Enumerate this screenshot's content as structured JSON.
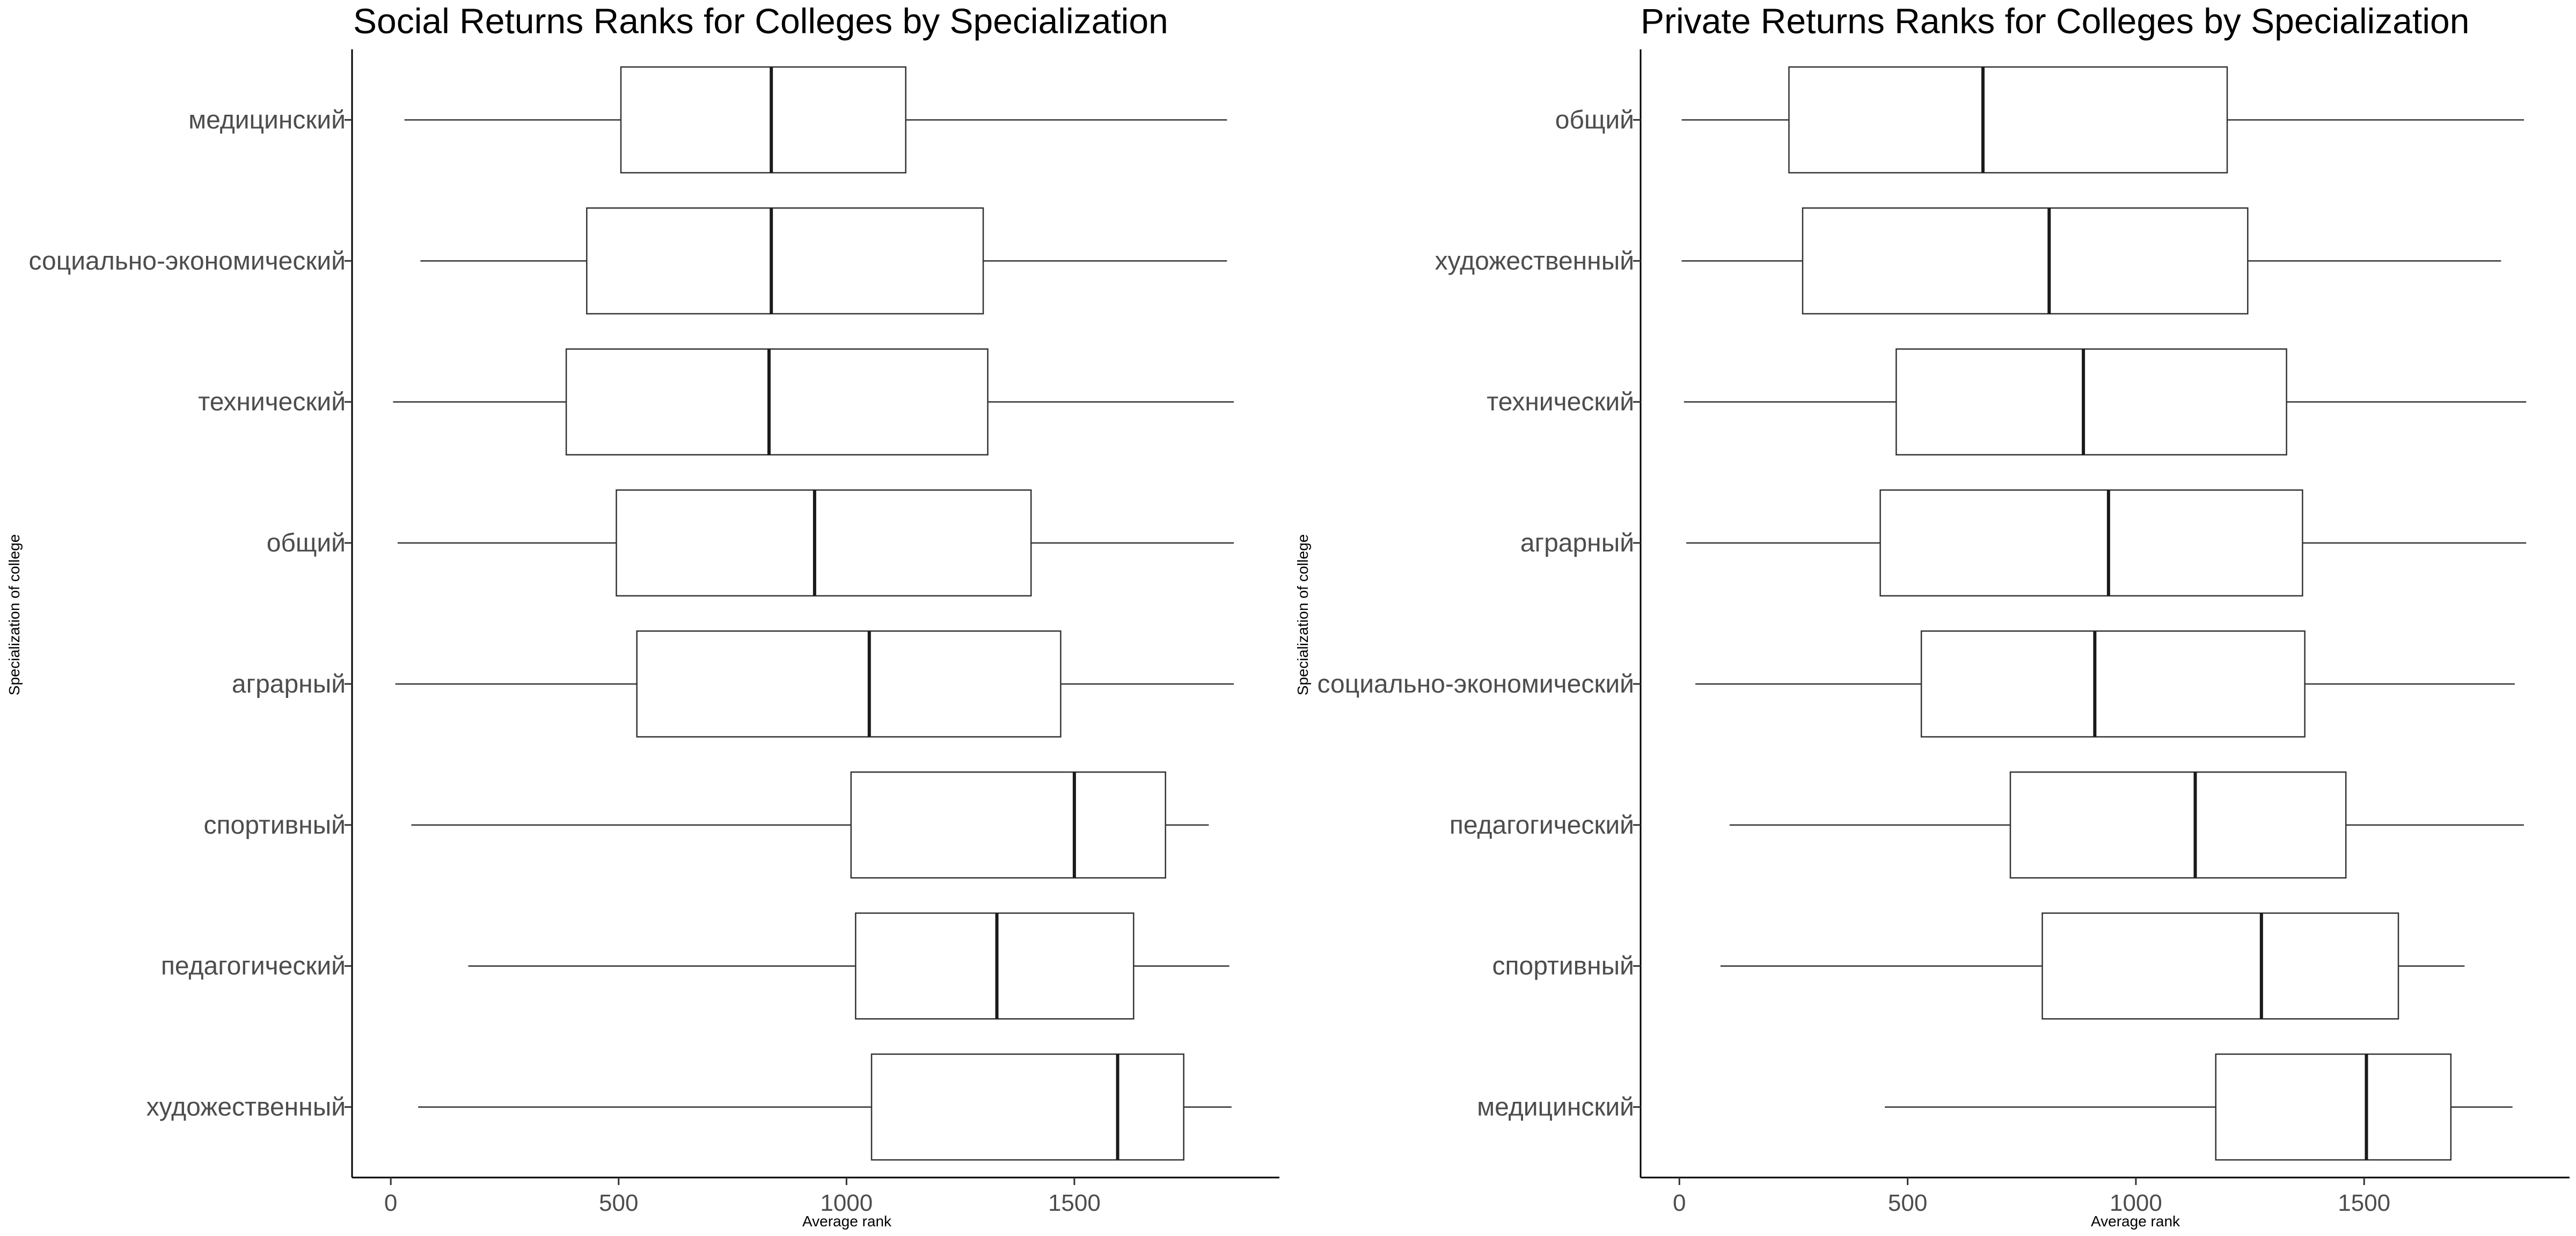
{
  "chart_data": [
    {
      "type": "boxplot",
      "orientation": "horizontal",
      "title": "Social Returns Ranks for Colleges by Specialization",
      "xlabel": "Average rank",
      "ylabel": "Specialization of college",
      "xlim": [
        -85,
        1950
      ],
      "xticks": [
        0,
        500,
        1000,
        1500
      ],
      "categories": [
        "медицинский",
        "социально-экономический",
        "технический",
        "общий",
        "аграрный",
        "спортивный",
        "педагогический",
        "художественный"
      ],
      "boxes": [
        {
          "min": 30,
          "q1": 505,
          "median": 835,
          "q3": 1130,
          "max": 1835
        },
        {
          "min": 65,
          "q1": 430,
          "median": 835,
          "q3": 1300,
          "max": 1835
        },
        {
          "min": 5,
          "q1": 385,
          "median": 830,
          "q3": 1310,
          "max": 1850
        },
        {
          "min": 15,
          "q1": 495,
          "median": 930,
          "q3": 1405,
          "max": 1850
        },
        {
          "min": 10,
          "q1": 540,
          "median": 1050,
          "q3": 1470,
          "max": 1850
        },
        {
          "min": 45,
          "q1": 1010,
          "median": 1500,
          "q3": 1700,
          "max": 1795
        },
        {
          "min": 170,
          "q1": 1020,
          "median": 1330,
          "q3": 1630,
          "max": 1840
        },
        {
          "min": 60,
          "q1": 1055,
          "median": 1595,
          "q3": 1740,
          "max": 1845
        }
      ]
    },
    {
      "type": "boxplot",
      "orientation": "horizontal",
      "title": "Private Returns Ranks for Colleges by Specialization",
      "xlabel": "Average rank",
      "ylabel": "Specialization of college",
      "xlim": [
        -85,
        1950
      ],
      "xticks": [
        0,
        500,
        1000,
        1500
      ],
      "categories": [
        "общий",
        "художественный",
        "технический",
        "аграрный",
        "социально-экономический",
        "педагогический",
        "спортивный",
        "медицинский"
      ],
      "boxes": [
        {
          "min": 5,
          "q1": 240,
          "median": 665,
          "q3": 1200,
          "max": 1850
        },
        {
          "min": 5,
          "q1": 270,
          "median": 810,
          "q3": 1245,
          "max": 1800
        },
        {
          "min": 10,
          "q1": 475,
          "median": 885,
          "q3": 1330,
          "max": 1855
        },
        {
          "min": 15,
          "q1": 440,
          "median": 940,
          "q3": 1365,
          "max": 1855
        },
        {
          "min": 35,
          "q1": 530,
          "median": 910,
          "q3": 1370,
          "max": 1830
        },
        {
          "min": 110,
          "q1": 725,
          "median": 1130,
          "q3": 1460,
          "max": 1850
        },
        {
          "min": 90,
          "q1": 795,
          "median": 1275,
          "q3": 1575,
          "max": 1720
        },
        {
          "min": 450,
          "q1": 1175,
          "median": 1505,
          "q3": 1690,
          "max": 1825
        }
      ]
    }
  ]
}
